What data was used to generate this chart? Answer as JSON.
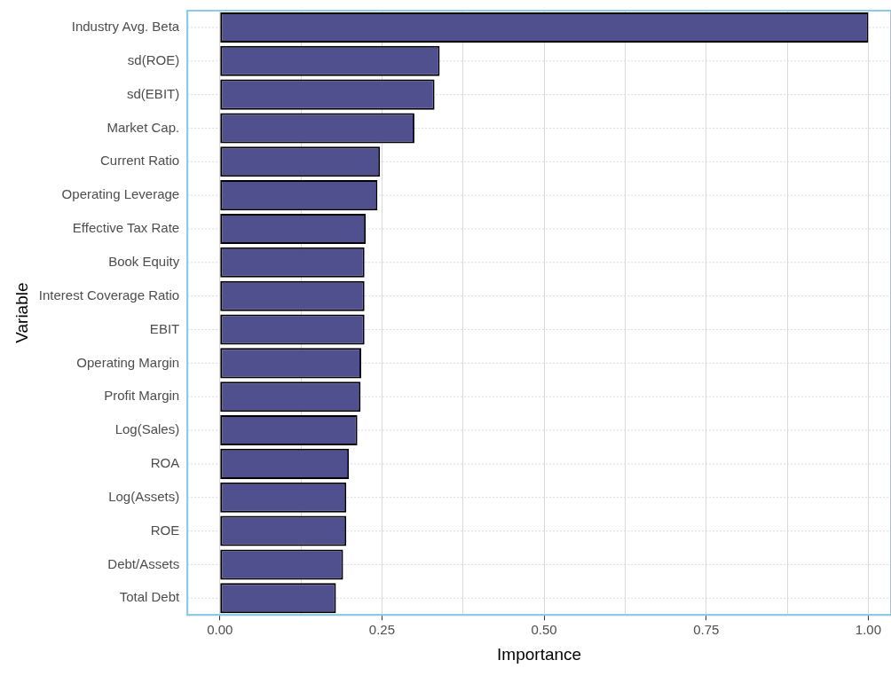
{
  "chart_data": {
    "type": "bar",
    "orientation": "horizontal",
    "xlabel": "Importance",
    "ylabel": "Variable",
    "categories": [
      "Industry Avg. Beta",
      "sd(ROE)",
      "sd(EBIT)",
      "Market Cap.",
      "Current Ratio",
      "Operating Leverage",
      "Effective Tax Rate",
      "Book Equity",
      "Interest Coverage Ratio",
      "EBIT",
      "Operating Margin",
      "Profit Margin",
      "Log(Sales)",
      "ROA",
      "Log(Assets)",
      "ROE",
      "Debt/Assets",
      "Total Debt"
    ],
    "values": [
      1.0,
      0.339,
      0.331,
      0.3,
      0.247,
      0.243,
      0.225,
      0.223,
      0.223,
      0.223,
      0.218,
      0.217,
      0.212,
      0.199,
      0.195,
      0.195,
      0.19,
      0.179
    ],
    "color": "#51508f",
    "xlim": [
      -0.05,
      1.035
    ],
    "xticks": [
      {
        "value": 0,
        "label": "0.00"
      },
      {
        "value": 0.125,
        "label": null
      },
      {
        "value": 0.25,
        "label": "0.25"
      },
      {
        "value": 0.375,
        "label": null
      },
      {
        "value": 0.5,
        "label": "0.50"
      },
      {
        "value": 0.625,
        "label": null
      },
      {
        "value": 0.75,
        "label": "0.75"
      },
      {
        "value": 0.875,
        "label": null
      },
      {
        "value": 1,
        "label": "1.00"
      }
    ],
    "grid": true,
    "legend": false
  }
}
